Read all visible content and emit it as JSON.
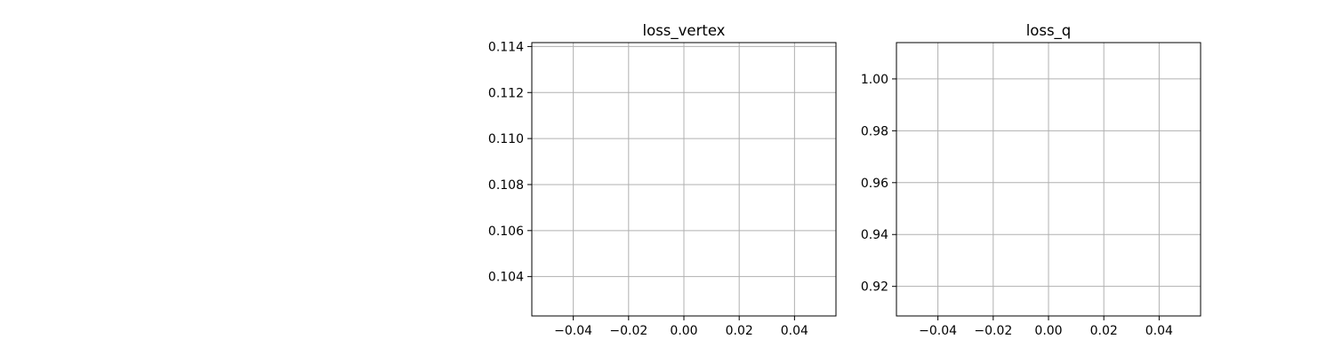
{
  "chart_data": [
    {
      "type": "line",
      "title": "loss_vertex",
      "xlabel": "",
      "ylabel": "",
      "x_ticks": [
        -0.04,
        -0.02,
        0.0,
        0.02,
        0.04
      ],
      "x_tick_labels": [
        "−0.04",
        "−0.02",
        "0.00",
        "0.02",
        "0.04"
      ],
      "y_ticks": [
        0.104,
        0.106,
        0.108,
        0.11,
        0.112,
        0.114
      ],
      "y_tick_labels": [
        "0.104",
        "0.106",
        "0.108",
        "0.110",
        "0.112",
        "0.114"
      ],
      "xlim": [
        -0.055,
        0.055
      ],
      "ylim": [
        0.10229,
        0.11417
      ],
      "grid": true,
      "series": []
    },
    {
      "type": "line",
      "title": "loss_q",
      "xlabel": "",
      "ylabel": "",
      "x_ticks": [
        -0.04,
        -0.02,
        0.0,
        0.02,
        0.04
      ],
      "x_tick_labels": [
        "−0.04",
        "−0.02",
        "0.00",
        "0.02",
        "0.04"
      ],
      "y_ticks": [
        0.92,
        0.94,
        0.96,
        0.98,
        1.0
      ],
      "y_tick_labels": [
        "0.92",
        "0.94",
        "0.96",
        "0.98",
        "1.00"
      ],
      "xlim": [
        -0.055,
        0.055
      ],
      "ylim": [
        0.9086,
        1.014
      ],
      "grid": true,
      "series": []
    }
  ],
  "colors": {
    "background": "#ffffff",
    "grid": "#b0b0b0",
    "axes": "#000000"
  }
}
